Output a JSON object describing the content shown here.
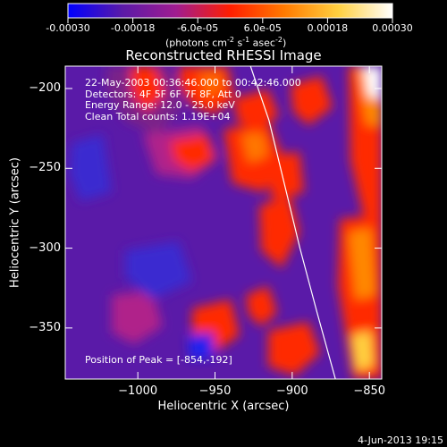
{
  "colorbar": {
    "ticks": [
      "-0.00030",
      "-0.00018",
      "-6.0e-05",
      "6.0e-05",
      "0.00018",
      "0.00030"
    ],
    "tick_values": [
      -0.0003,
      -0.00018,
      -6e-05,
      6e-05,
      0.00018,
      0.0003
    ],
    "range": [
      -0.0003,
      0.0003
    ],
    "unit_parts": [
      "(photons cm",
      "-2",
      " s",
      "-1",
      " asec",
      "-2",
      ")"
    ],
    "colors": [
      "#0000ff",
      "#5a1aa8",
      "#a01c90",
      "#ff1e00",
      "#ff7a00",
      "#ffd040",
      "#ffffff"
    ]
  },
  "chart_data": {
    "type": "heatmap",
    "title": "Reconstructed RHESSI Image",
    "xlabel": "Heliocentric X (arcsec)",
    "ylabel": "Heliocentric Y (arcsec)",
    "xlim": [
      -1047,
      -842
    ],
    "ylim": [
      -382,
      -186
    ],
    "x_ticks": [
      -1000,
      -950,
      -900,
      -850
    ],
    "y_ticks": [
      -200,
      -250,
      -300,
      -350
    ],
    "x_tick_labels": [
      "−1000",
      "−950",
      "−900",
      "−850"
    ],
    "y_tick_labels": [
      "−200",
      "−250",
      "−300",
      "−350"
    ],
    "info_lines": [
      "22-May-2003 00:36:46.000 to 00:42:46.000",
      "Detectors: 4F 5F 6F 7F 8F, Att 0",
      "Energy Range: 12.0 - 25.0 keV",
      "Clean      Total counts: 1.19E+04"
    ],
    "peak_label": "Position of Peak = [-854,-192]",
    "peak": [
      -854,
      -192
    ],
    "limb": [
      [
        -927,
        -186
      ],
      [
        -915,
        -220
      ],
      [
        -905,
        -260
      ],
      [
        -895,
        -300
      ],
      [
        -884,
        -340
      ],
      [
        -872,
        -382
      ]
    ]
  },
  "footer": {
    "date": "4-Jun-2013 19:15"
  }
}
